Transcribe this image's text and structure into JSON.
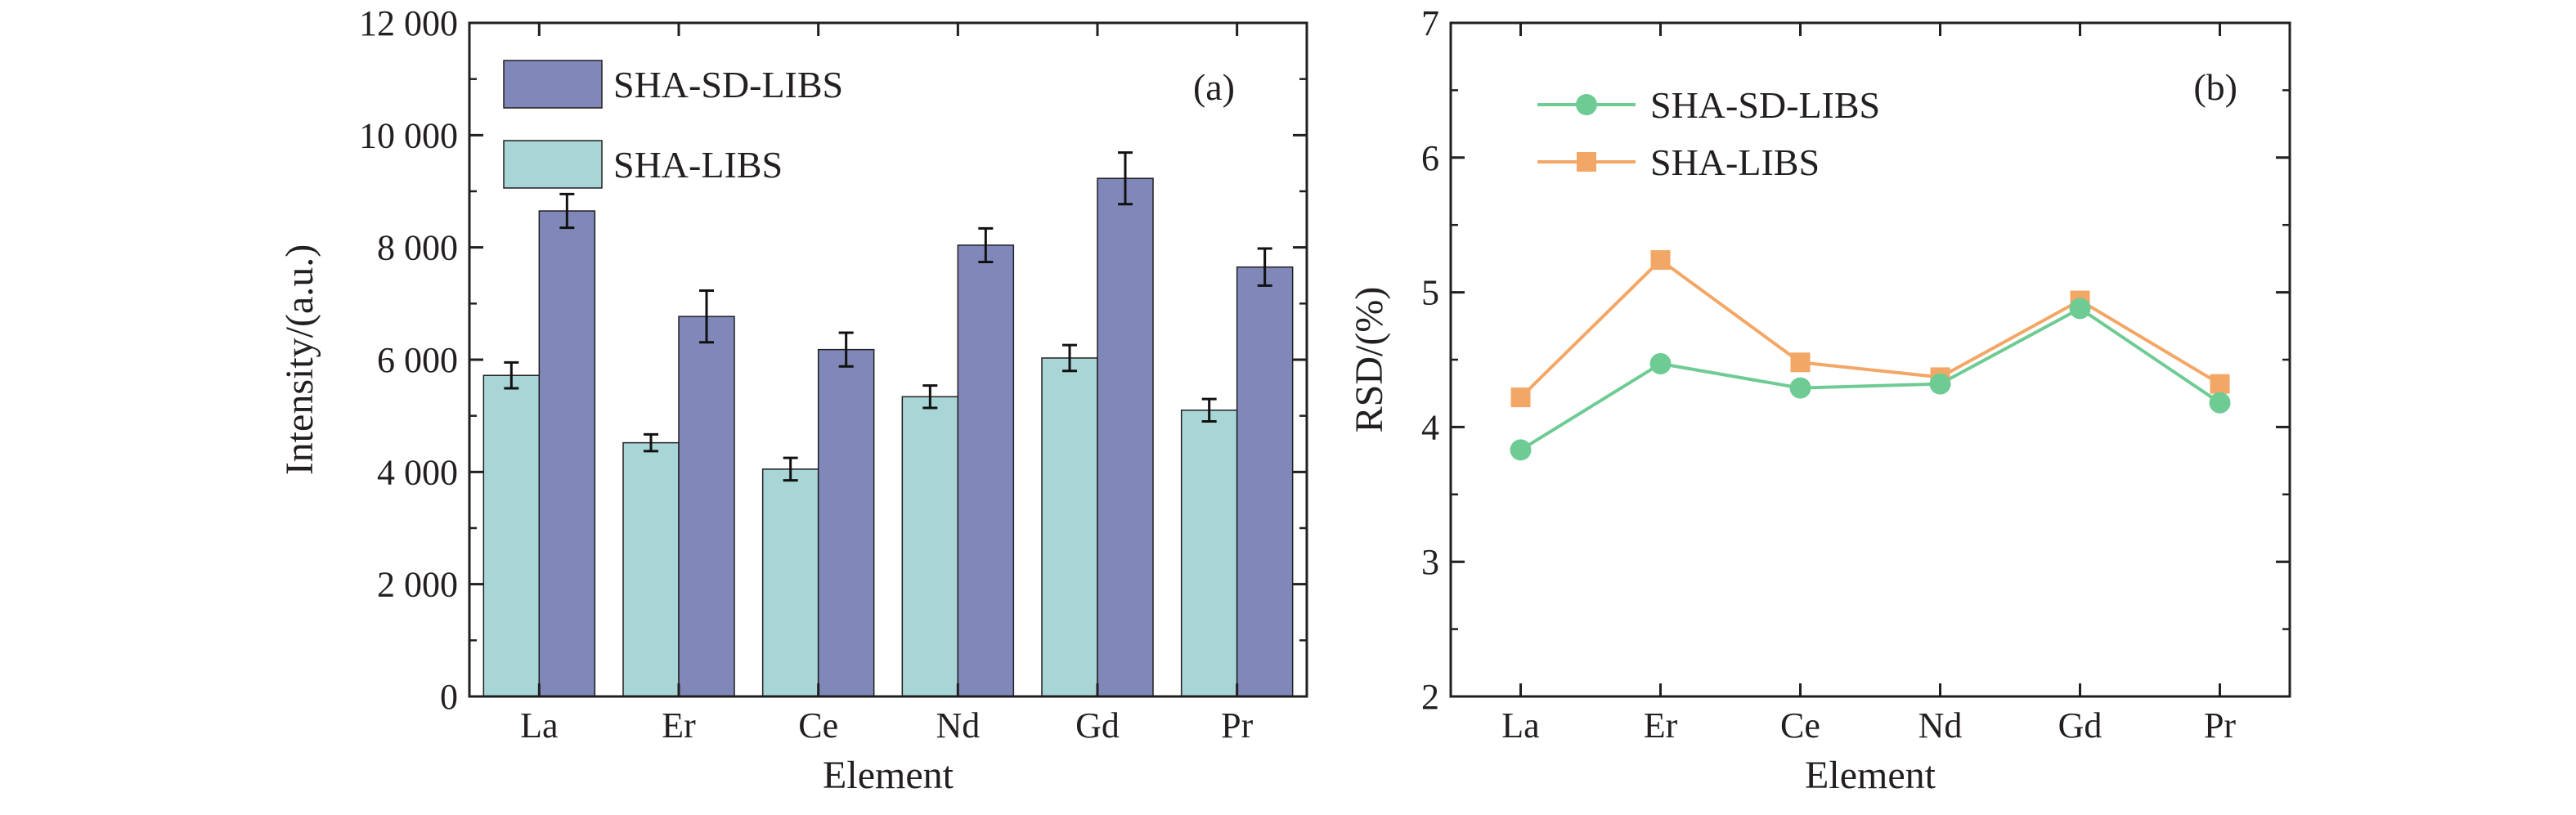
{
  "chart_data": [
    {
      "type": "bar",
      "panel_label": "(a)",
      "xlabel": "Element",
      "ylabel": "Intensity/(a.u.)",
      "ylim": [
        0,
        12000
      ],
      "yticks": [
        0,
        2000,
        4000,
        6000,
        8000,
        10000,
        12000
      ],
      "ytick_labels": [
        "0",
        "2 000",
        "4 000",
        "6 000",
        "8 000",
        "10 000",
        "12 000"
      ],
      "categories": [
        "La",
        "Er",
        "Ce",
        "Nd",
        "Gd",
        "Pr"
      ],
      "series": [
        {
          "name": "SHA-LIBS",
          "color": "#a8d5d5",
          "values": [
            5720,
            4520,
            4050,
            5340,
            6030,
            5100
          ],
          "errors": [
            230,
            150,
            200,
            200,
            230,
            200
          ]
        },
        {
          "name": "SHA-SD-LIBS",
          "color": "#7f88b9",
          "values": [
            8650,
            6770,
            6180,
            8040,
            9230,
            7650
          ],
          "errors": [
            300,
            460,
            300,
            300,
            460,
            330
          ]
        }
      ],
      "legend": [
        "SHA-SD-LIBS",
        "SHA-LIBS"
      ],
      "legend_position": "top-left",
      "grid": false
    },
    {
      "type": "line",
      "panel_label": "(b)",
      "xlabel": "Element",
      "ylabel": "RSD/(%)",
      "ylim": [
        2,
        7
      ],
      "yticks": [
        2,
        3,
        4,
        5,
        6,
        7
      ],
      "ytick_labels": [
        "2",
        "3",
        "4",
        "5",
        "6",
        "7"
      ],
      "categories": [
        "La",
        "Er",
        "Ce",
        "Nd",
        "Gd",
        "Pr"
      ],
      "series": [
        {
          "name": "SHA-SD-LIBS",
          "color": "#6fcb94",
          "marker": "circle",
          "values": [
            3.83,
            4.47,
            4.29,
            4.32,
            4.88,
            4.18
          ]
        },
        {
          "name": "SHA-LIBS",
          "color": "#f3a766",
          "marker": "square",
          "values": [
            4.22,
            5.24,
            4.48,
            4.37,
            4.94,
            4.32
          ]
        }
      ],
      "legend": [
        "SHA-SD-LIBS",
        "SHA-LIBS"
      ],
      "legend_position": "top-left",
      "grid": false
    }
  ]
}
